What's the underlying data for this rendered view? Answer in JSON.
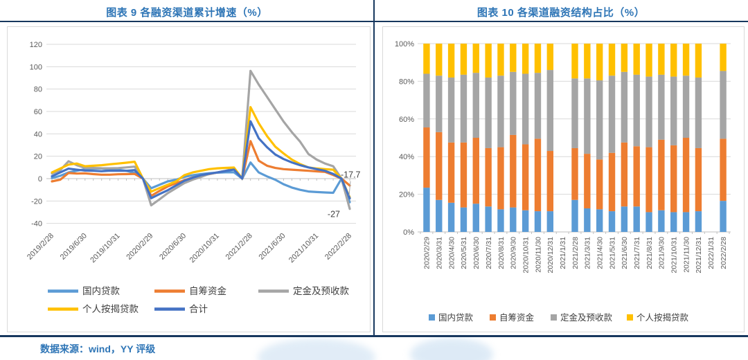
{
  "page": {
    "left_title": "图表 9  各融资渠道累计增速（%）",
    "right_title": "图表 10 各渠道融资结构占比（%）",
    "source_text": "数据来源：wind，YY 评级",
    "colors": {
      "title_blue": "#2E75B6",
      "rule_navy": "#17375E",
      "source_blue": "#2E75B6",
      "grid": "#D9D9D9",
      "axis": "#BFBFBF",
      "tick_text": "#595959",
      "legend_text": "#404040",
      "watermark_blue": "#BDD7EE"
    }
  },
  "chart_data": [
    {
      "type": "line",
      "title": "图表 9  各融资渠道累计增速（%）",
      "ylabel": "",
      "ylim": [
        -40,
        120
      ],
      "ytick_step": 20,
      "grid": true,
      "legend_position": "bottom",
      "x_labeled_every": 4,
      "categories": [
        "2019/2/28",
        "2019/3/31",
        "2019/4/30",
        "2019/5/31",
        "2019/6/30",
        "2019/7/31",
        "2019/8/31",
        "2019/9/30",
        "2019/10/31",
        "2019/11/30",
        "2019/12/31",
        "2020/1/31",
        "2020/2/29",
        "2020/3/31",
        "2020/4/30",
        "2020/5/31",
        "2020/6/30",
        "2020/7/31",
        "2020/8/31",
        "2020/9/30",
        "2020/10/31",
        "2020/11/30",
        "2020/12/31",
        "2021/1/31",
        "2021/2/28",
        "2021/3/31",
        "2021/4/30",
        "2021/5/31",
        "2021/6/30",
        "2021/7/31",
        "2021/8/31",
        "2021/9/30",
        "2021/10/31",
        "2021/11/30",
        "2021/12/31",
        "2022/1/31",
        "2022/2/28"
      ],
      "series": [
        {
          "name": "国内贷款",
          "color": "#5B9BD5",
          "values": [
            0.5,
            2.5,
            5.5,
            7.0,
            8.4,
            9.0,
            9.0,
            8.5,
            7.9,
            7.0,
            5.1,
            0,
            -8.6,
            -5.5,
            -2.5,
            -1.0,
            1.5,
            3.0,
            4.0,
            4.8,
            5.3,
            5.6,
            5.7,
            0,
            14.4,
            5.5,
            2.0,
            -1.0,
            -5.0,
            -8.0,
            -10.0,
            -11.5,
            -12.0,
            -12.4,
            -12.7,
            0,
            -21.1
          ]
        },
        {
          "name": "自筹资金",
          "color": "#ED7D31",
          "values": [
            -2.5,
            -1.0,
            5.0,
            4.5,
            4.7,
            4.0,
            3.5,
            3.5,
            3.9,
            4.0,
            4.2,
            0,
            -15.4,
            -11.0,
            -7.0,
            -4.0,
            -1.5,
            1.0,
            2.5,
            4.0,
            5.5,
            7.0,
            9.0,
            0,
            33.5,
            16.0,
            11.5,
            9.5,
            8.5,
            8.0,
            7.5,
            7.0,
            6.5,
            6.0,
            3.2,
            0,
            -6.2
          ]
        },
        {
          "name": "定金及预收款",
          "color": "#A5A5A5",
          "values": [
            4.5,
            7.5,
            15.5,
            12.0,
            9.5,
            9.5,
            9.3,
            9.2,
            9.4,
            10.0,
            10.7,
            0,
            -23.9,
            -18.5,
            -13.0,
            -8.5,
            -4.0,
            -1.0,
            1.5,
            4.2,
            5.5,
            7.0,
            8.5,
            0,
            96.3,
            84.0,
            73.0,
            62.0,
            51.0,
            41.5,
            33.0,
            22.0,
            17.0,
            13.5,
            11.1,
            0,
            -27.0
          ]
        },
        {
          "name": "个人按揭贷款",
          "color": "#FFC000",
          "values": [
            5.5,
            9.0,
            12.5,
            13.5,
            11.1,
            11.5,
            12.0,
            12.8,
            13.5,
            14.2,
            15.1,
            0,
            -11.6,
            -8.5,
            -5.5,
            -2.5,
            3.1,
            5.5,
            7.0,
            8.5,
            9.2,
            9.6,
            9.9,
            0,
            63.9,
            49.5,
            38.0,
            28.5,
            22.5,
            17.0,
            13.0,
            10.0,
            9.0,
            8.5,
            8.0,
            0,
            -16.9
          ]
        },
        {
          "name": "合计",
          "color": "#4472C4",
          "values": [
            2.1,
            5.5,
            8.9,
            8.0,
            7.2,
            7.0,
            6.6,
            7.1,
            7.0,
            7.0,
            7.6,
            0,
            -17.5,
            -13.8,
            -10.4,
            -6.1,
            -1.9,
            0.8,
            3.0,
            4.4,
            5.5,
            6.8,
            8.1,
            0,
            51.2,
            36.0,
            28.0,
            21.5,
            17.5,
            14.5,
            12.0,
            10.0,
            8.5,
            7.0,
            4.2,
            0,
            -17.7
          ]
        }
      ],
      "annotations": [
        {
          "text": "-17.7",
          "series": "合计",
          "placement": "above-end",
          "leader": true
        },
        {
          "text": "-27",
          "series": "定金及预收款",
          "placement": "below-end",
          "leader": false
        }
      ],
      "legend_rows": [
        [
          "国内贷款",
          "自筹资金",
          "定金及预收款"
        ],
        [
          "个人按揭贷款",
          "合计"
        ]
      ]
    },
    {
      "type": "bar",
      "stacked": true,
      "title": "图表 10 各渠道融资结构占比（%）",
      "ylabel": "",
      "ylim": [
        0,
        100
      ],
      "ytick_step": 20,
      "ytick_suffix": "%",
      "grid": true,
      "legend_position": "bottom",
      "categories": [
        "2020/2/29",
        "2020/3/31",
        "2020/4/30",
        "2020/5/31",
        "2020/6/30",
        "2020/7/31",
        "2020/8/31",
        "2020/9/30",
        "2020/10/31",
        "2020/11/30",
        "2020/12/31",
        "2021/1/31",
        "2021/2/28",
        "2021/3/31",
        "2021/4/30",
        "2021/5/31",
        "2021/6/30",
        "2021/7/31",
        "2021/8/31",
        "2021/9/30",
        "2021/10/31",
        "2021/11/30",
        "2021/12/31",
        "2022/1/31",
        "2022/2/28"
      ],
      "series": [
        {
          "name": "国内贷款",
          "color": "#5B9BD5",
          "values": [
            23.5,
            17,
            15.5,
            13,
            15,
            13.5,
            12,
            13,
            11.5,
            11,
            11,
            null,
            17,
            12.5,
            12,
            11,
            13.5,
            13.5,
            10.5,
            11.5,
            10.5,
            10.5,
            11,
            null,
            16.5
          ]
        },
        {
          "name": "自筹资金",
          "color": "#ED7D31",
          "values": [
            32,
            36,
            32,
            34.5,
            35,
            31,
            33,
            38.5,
            35,
            38.5,
            32,
            null,
            27.5,
            29,
            26.5,
            31,
            34,
            32,
            34.5,
            37.5,
            35.5,
            39.5,
            33.5,
            null,
            33
          ]
        },
        {
          "name": "定金及预收款",
          "color": "#A5A5A5",
          "values": [
            28.5,
            30,
            34.5,
            36,
            34.5,
            37.5,
            38,
            33.5,
            37.5,
            35,
            43,
            null,
            37,
            40,
            42,
            41,
            37.5,
            38,
            37.5,
            34.5,
            36.5,
            33,
            37.5,
            null,
            36
          ]
        },
        {
          "name": "个人按揭贷款",
          "color": "#FFC000",
          "values": [
            16,
            17,
            18,
            16.5,
            15.5,
            18,
            17,
            15,
            16,
            15.5,
            14,
            null,
            18.5,
            18.5,
            19.5,
            17,
            15,
            16.5,
            17.5,
            16.5,
            17.5,
            17,
            18,
            null,
            14.5
          ]
        }
      ]
    }
  ]
}
